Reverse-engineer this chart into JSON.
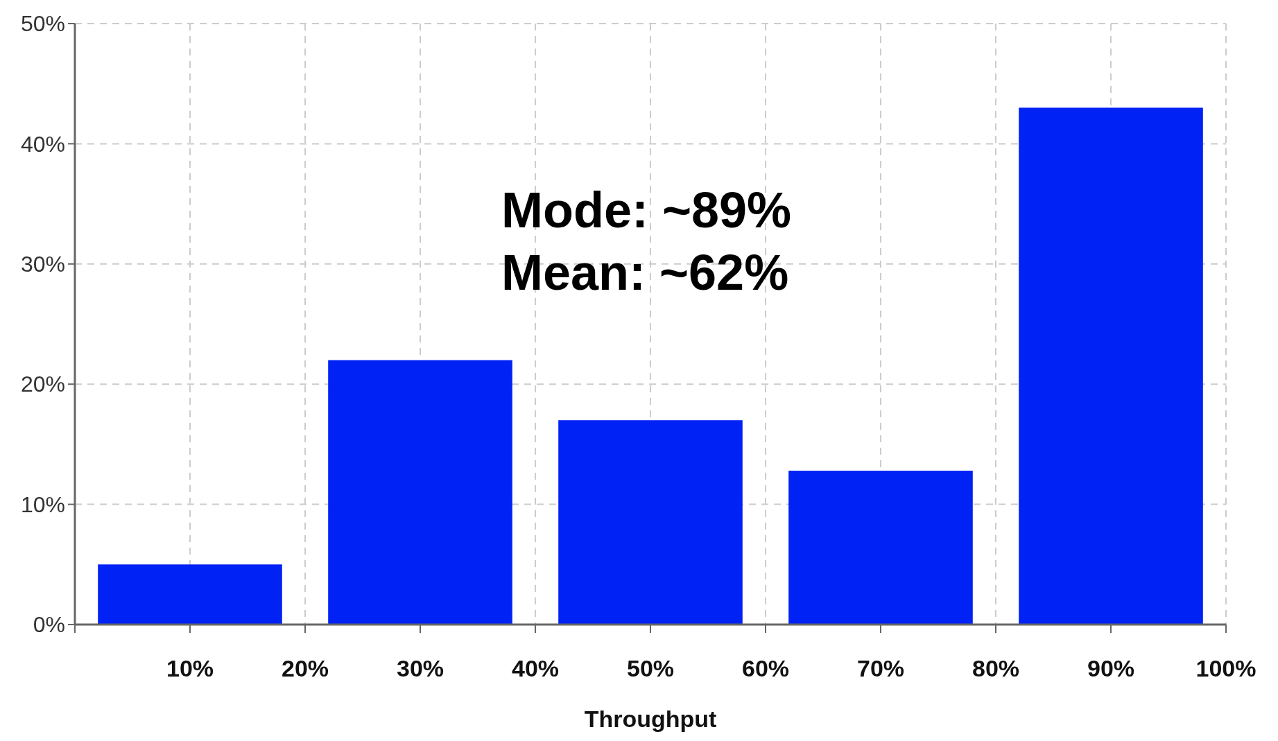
{
  "chart_data": {
    "type": "histogram",
    "xlabel": "Throughput",
    "bins": [
      0,
      20,
      40,
      60,
      80,
      100
    ],
    "values": [
      5,
      22,
      17,
      12.8,
      43
    ],
    "color": "#0022f5",
    "xlim": [
      0,
      100
    ],
    "xticks": [
      {
        "value": 0,
        "label": null
      },
      {
        "value": 10,
        "label": "10%"
      },
      {
        "value": 20,
        "label": "20%"
      },
      {
        "value": 30,
        "label": "30%"
      },
      {
        "value": 40,
        "label": "40%"
      },
      {
        "value": 50,
        "label": "50%"
      },
      {
        "value": 60,
        "label": "60%"
      },
      {
        "value": 70,
        "label": "70%"
      },
      {
        "value": 80,
        "label": "80%"
      },
      {
        "value": 90,
        "label": "90%"
      },
      {
        "value": 100,
        "label": "100%"
      }
    ],
    "ylim": [
      0,
      50
    ],
    "yticks": [
      {
        "value": 0,
        "label": "0%"
      },
      {
        "value": 10,
        "label": "10%"
      },
      {
        "value": 20,
        "label": "20%"
      },
      {
        "value": 30,
        "label": "30%"
      },
      {
        "value": 40,
        "label": "40%"
      },
      {
        "value": 50,
        "label": "50%"
      }
    ],
    "grid": true,
    "annotations": [
      "Mode: ~89%",
      "Mean: ~62%"
    ]
  }
}
